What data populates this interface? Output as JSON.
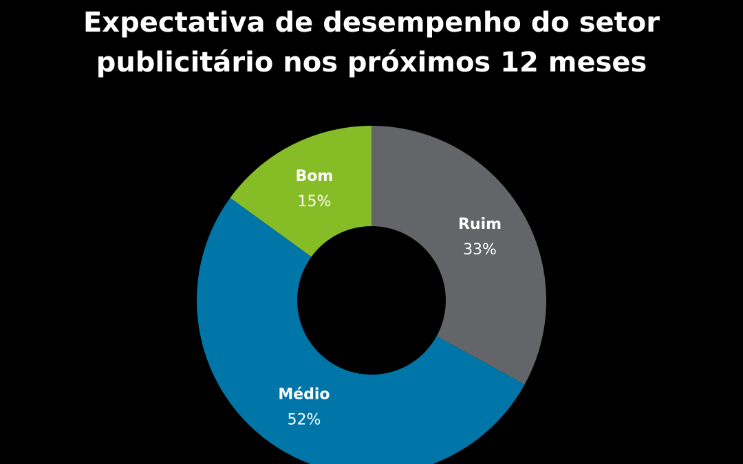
{
  "chart_data": {
    "type": "pie",
    "donut": true,
    "title_lines": [
      "Expectativa de desempenho do setor",
      "publicitário nos próximos 12 meses"
    ],
    "slices": [
      {
        "label": "Ruim",
        "value": 33,
        "value_label": "33%",
        "color": "#636569"
      },
      {
        "label": "Médio",
        "value": 52,
        "value_label": "52%",
        "color": "#0076a8"
      },
      {
        "label": "Bom",
        "value": 15,
        "value_label": "15%",
        "color": "#86bc25"
      }
    ],
    "start_angle": "top",
    "direction": "clockwise",
    "background_color": "#000000"
  }
}
